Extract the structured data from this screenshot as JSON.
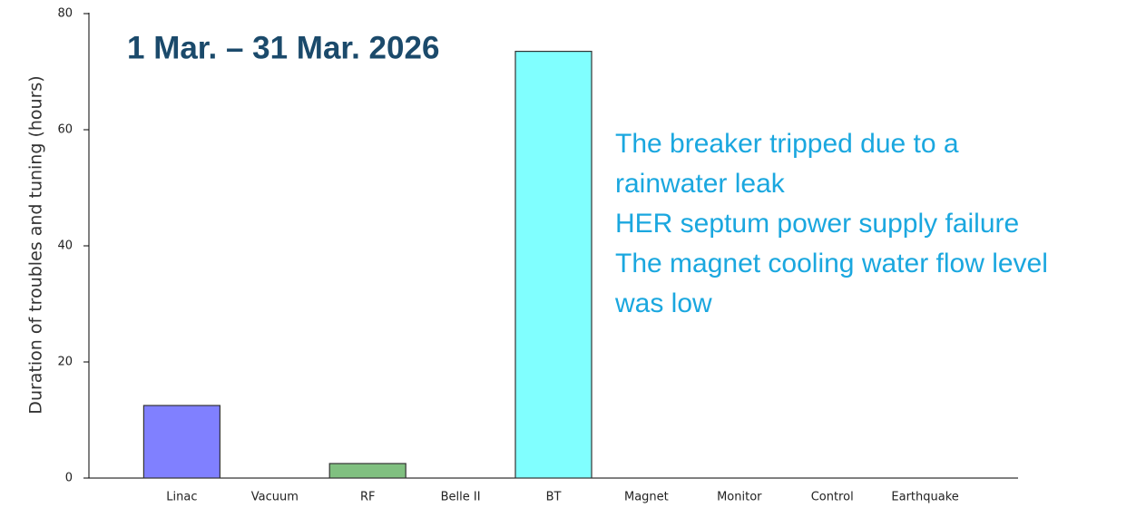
{
  "chart_data": {
    "type": "bar",
    "title": "1 Mar. – 31 Mar. 2026",
    "y_label": "Duration of troubles and tuning (hours)",
    "annotations": [
      "The breaker tripped due to a",
      "rainwater leak",
      "HER septum power supply failure",
      "The magnet cooling water flow level",
      "was low"
    ],
    "categories": [
      "Linac",
      "Vacuum",
      "RF",
      "Belle II",
      "BT",
      "Magnet",
      "Monitor",
      "Control",
      "Earthquake"
    ],
    "values": [
      12.5,
      0,
      2.5,
      0,
      73.5,
      0,
      0,
      0,
      0
    ],
    "colors": [
      "#8080ff",
      "#ff8080",
      "#80c080",
      "#c0c0c0",
      "#80ffff",
      "#ffc080",
      "#ff80ff",
      "#c0c080",
      "#a0a0a0"
    ],
    "ylim": [
      0,
      80
    ],
    "yticks": [
      0,
      20,
      40,
      60,
      80
    ],
    "grid": false
  }
}
